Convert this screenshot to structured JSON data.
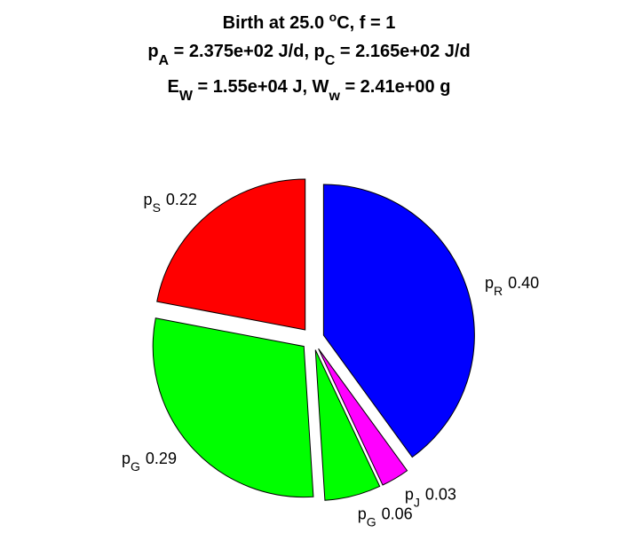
{
  "chart_data": {
    "type": "pie",
    "title": [
      [
        "Birth at 25.0 ",
        "o",
        "C, f = 1"
      ],
      [
        "p",
        "A",
        " = 2.375e+02 J/d, p",
        "C",
        " = 2.165e+02 J/d"
      ],
      [
        "E",
        "W",
        " = 1.55e+04 J, W",
        "w",
        " = 2.41e+00 g"
      ]
    ],
    "categories": [
      [
        "p",
        "R"
      ],
      [
        "p",
        "J"
      ],
      [
        "p",
        "G"
      ],
      [
        "p",
        "G"
      ],
      [
        "p",
        "S"
      ]
    ],
    "values": [
      0.4,
      0.03,
      0.06,
      0.29,
      0.22
    ],
    "value_labels": [
      "0.40",
      "0.03",
      "0.06",
      "0.29",
      "0.22"
    ],
    "colors": [
      "#0000ff",
      "#ff00ff",
      "#00ff00",
      "#00ff00",
      "#ff0000"
    ],
    "explode": true
  }
}
